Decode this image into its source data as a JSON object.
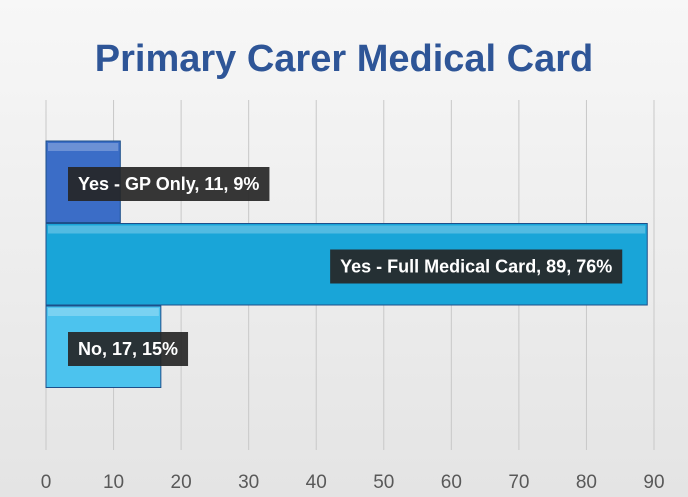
{
  "chart_data": {
    "type": "barh",
    "title": "Primary Carer Medical Card",
    "categories": [
      "Yes - GP Only",
      "Yes - Full Medical Card",
      "No"
    ],
    "values": [
      11,
      89,
      17
    ],
    "value_labels": [
      "Yes - GP Only, 11, 9%",
      "Yes - Full Medical Card, 89, 76%",
      "No, 17, 15%"
    ],
    "colors": [
      "#3b6dc7",
      "#19a5d8",
      "#4cc3ee"
    ],
    "xlim": [
      0,
      90
    ],
    "xticks": [
      0,
      10,
      20,
      30,
      40,
      50,
      60,
      70,
      80,
      90
    ],
    "grid": true
  }
}
